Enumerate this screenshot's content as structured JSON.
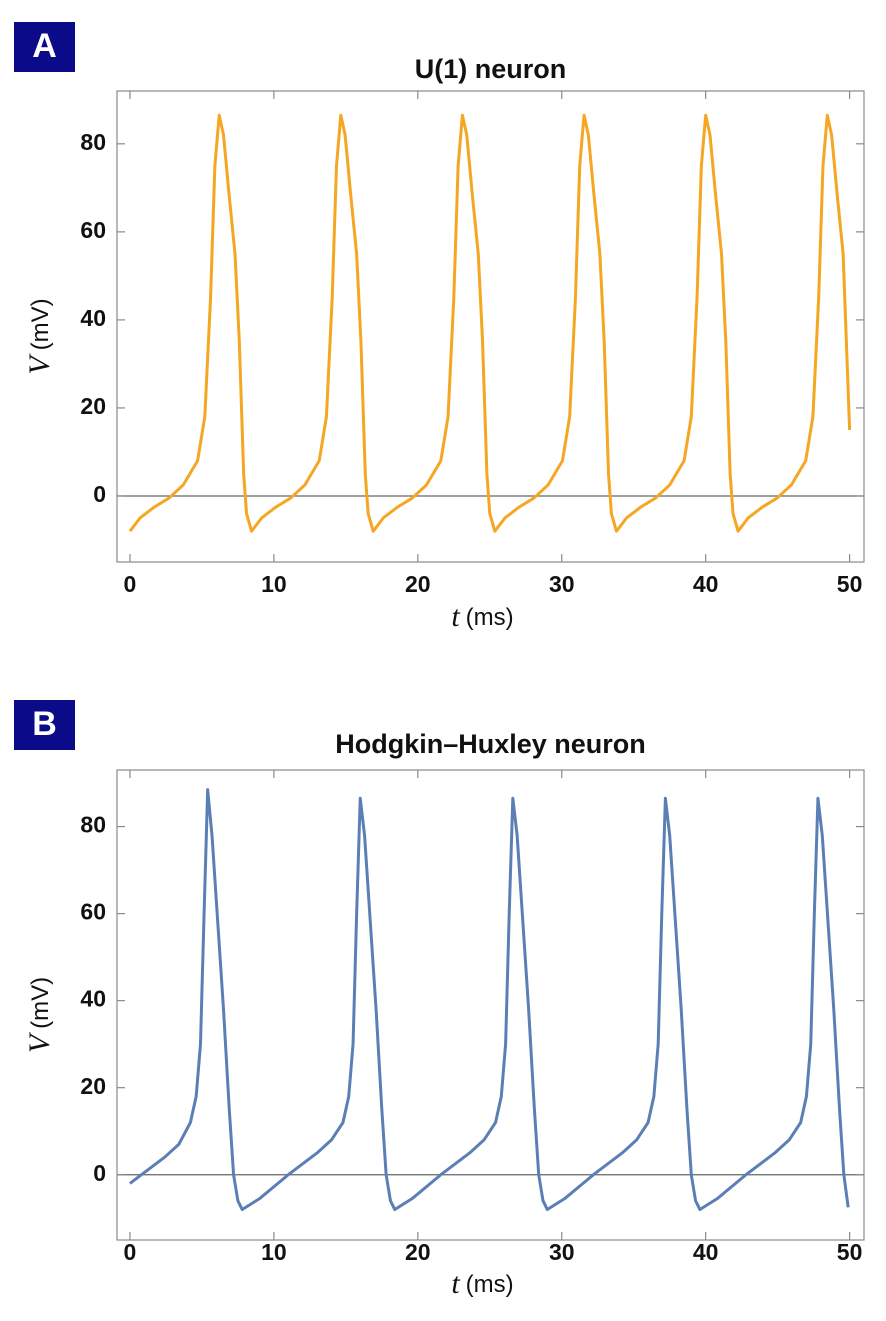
{
  "chart_data": [
    {
      "type": "line",
      "panel_label": "A",
      "title": "U(1) neuron",
      "xlabel": {
        "symbol": "t",
        "unit": "(ms)"
      },
      "ylabel": {
        "symbol": "V",
        "unit": "(mV)"
      },
      "color": "#f5a623",
      "x": [
        0,
        0.7,
        1.7,
        2.7,
        3.7,
        4.7,
        5.2,
        5.6,
        5.9,
        6.2,
        6.5,
        6.9,
        7.3,
        7.6,
        7.9,
        8.1,
        8.45,
        9.15,
        10.15,
        11.15,
        12.15,
        13.15,
        13.65,
        14.05,
        14.35,
        14.65,
        14.95,
        15.35,
        15.75,
        16.05,
        16.35,
        16.55,
        16.9,
        17.6,
        18.6,
        19.6,
        20.6,
        21.6,
        22.1,
        22.5,
        22.8,
        23.1,
        23.4,
        23.8,
        24.2,
        24.5,
        24.8,
        25.0,
        25.35,
        26.05,
        27.05,
        28.05,
        29.05,
        30.05,
        30.55,
        30.95,
        31.25,
        31.55,
        31.85,
        32.25,
        32.65,
        32.95,
        33.25,
        33.45,
        33.8,
        34.5,
        35.5,
        36.5,
        37.5,
        38.5,
        39.0,
        39.4,
        39.7,
        40.0,
        40.3,
        40.7,
        41.1,
        41.4,
        41.7,
        41.9,
        42.25,
        42.95,
        43.95,
        44.95,
        45.95,
        46.95,
        47.45,
        47.85,
        48.15,
        48.45,
        48.75,
        49.15,
        49.55,
        50
      ],
      "values": [
        -8,
        -5,
        -2.5,
        -0.5,
        2.5,
        8,
        18,
        45,
        75,
        86.5,
        82,
        68,
        55,
        35,
        5,
        -4,
        -8,
        -5,
        -2.5,
        -0.5,
        2.5,
        8,
        18,
        45,
        75,
        86.5,
        82,
        68,
        55,
        35,
        5,
        -4,
        -8,
        -5,
        -2.5,
        -0.5,
        2.5,
        8,
        18,
        45,
        75,
        86.5,
        82,
        68,
        55,
        35,
        5,
        -4,
        -8,
        -5,
        -2.5,
        -0.5,
        2.5,
        8,
        18,
        45,
        75,
        86.5,
        82,
        68,
        55,
        35,
        5,
        -4,
        -8,
        -5,
        -2.5,
        -0.5,
        2.5,
        8,
        18,
        45,
        75,
        86.5,
        82,
        68,
        55,
        35,
        5,
        -4,
        -8,
        -5,
        -2.5,
        -0.5,
        2.5,
        8,
        18,
        45,
        75,
        86.5,
        82,
        68,
        55,
        15
      ],
      "xlim": [
        -0.9,
        51
      ],
      "ylim": [
        -15,
        92
      ],
      "xticks": [
        0,
        10,
        20,
        30,
        40,
        50
      ],
      "yticks": [
        0,
        20,
        40,
        60,
        80
      ]
    },
    {
      "type": "line",
      "panel_label": "B",
      "title": "Hodgkin–Huxley neuron",
      "xlabel": {
        "symbol": "t",
        "unit": "(ms)"
      },
      "ylabel": {
        "symbol": "V",
        "unit": "(mV)"
      },
      "color": "#5b7fb5",
      "x": [
        0,
        0.8,
        2.4,
        3.4,
        4.2,
        4.6,
        4.9,
        5.15,
        5.4,
        5.7,
        6.1,
        6.5,
        6.9,
        7.2,
        7.5,
        7.8,
        9.0,
        11.0,
        13.0,
        14.0,
        14.8,
        15.2,
        15.5,
        15.75,
        16.0,
        16.3,
        16.7,
        17.1,
        17.5,
        17.8,
        18.1,
        18.4,
        19.6,
        21.6,
        23.6,
        24.6,
        25.4,
        25.8,
        26.1,
        26.35,
        26.6,
        26.9,
        27.3,
        27.7,
        28.1,
        28.4,
        28.7,
        29.0,
        30.2,
        32.2,
        34.2,
        35.2,
        36.0,
        36.4,
        36.7,
        36.95,
        37.2,
        37.5,
        37.9,
        38.3,
        38.7,
        39.0,
        39.3,
        39.6,
        40.8,
        42.8,
        44.8,
        45.8,
        46.6,
        47.0,
        47.3,
        47.55,
        47.8,
        48.1,
        48.5,
        48.9,
        49.3,
        49.6,
        49.9
      ],
      "values": [
        -2,
        0,
        4,
        7,
        12,
        18,
        30,
        60,
        88.5,
        78,
        58,
        38,
        15,
        0,
        -6,
        -8,
        -5.5,
        0,
        5,
        8,
        12,
        18,
        30,
        60,
        86.5,
        78,
        58,
        38,
        15,
        0,
        -6,
        -8,
        -5.5,
        0,
        5,
        8,
        12,
        18,
        30,
        60,
        86.5,
        78,
        58,
        38,
        15,
        0,
        -6,
        -8,
        -5.5,
        0,
        5,
        8,
        12,
        18,
        30,
        60,
        86.5,
        78,
        58,
        38,
        15,
        0,
        -6,
        -8,
        -5.5,
        0,
        5,
        8,
        12,
        18,
        30,
        60,
        86.5,
        78,
        58,
        38,
        15,
        0,
        -7.5
      ],
      "xlim": [
        -0.9,
        51
      ],
      "ylim": [
        -15,
        93
      ],
      "xticks": [
        0,
        10,
        20,
        30,
        40,
        50
      ],
      "yticks": [
        0,
        20,
        40,
        60,
        80
      ]
    }
  ]
}
